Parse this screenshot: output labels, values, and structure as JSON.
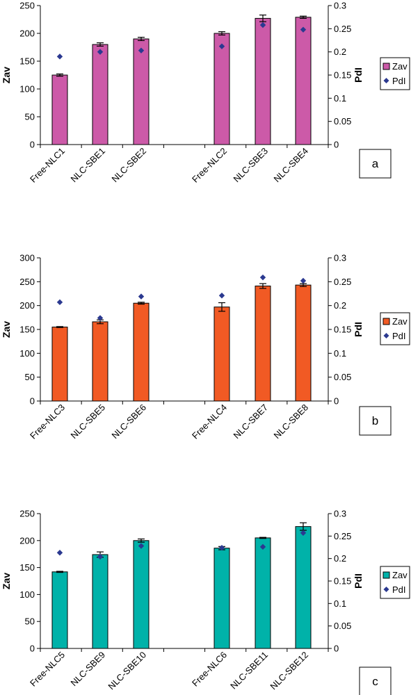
{
  "chart_data": [
    {
      "type": "bar",
      "panel_label": "a",
      "categories": [
        "Free-NLC1",
        "NLC-SBE1",
        "NLC-SBE2",
        "Free-NLC2",
        "NLC-SBE3",
        "NLC-SBE4"
      ],
      "series": [
        {
          "name": "Zav",
          "axis": "left",
          "kind": "bar",
          "color": "#cc5aa8",
          "values": [
            125,
            180,
            190,
            200,
            227,
            229
          ],
          "errors": [
            2,
            3,
            3,
            3,
            6,
            2
          ]
        },
        {
          "name": "PdI",
          "axis": "right",
          "kind": "scatter",
          "color": "#2b3990",
          "values": [
            0.19,
            0.2,
            0.203,
            0.212,
            0.258,
            0.248
          ]
        }
      ],
      "ylabel": "Zav",
      "y2label": "PdI",
      "ylim": [
        0,
        250
      ],
      "yticks": [
        "0",
        "50",
        "100",
        "150",
        "200",
        "250"
      ],
      "y2lim": [
        0,
        0.3
      ],
      "y2ticks": [
        "0",
        "0.05",
        "0.1",
        "0.15",
        "0.2",
        "0.25",
        "0.3"
      ],
      "legend": "right"
    },
    {
      "type": "bar",
      "panel_label": "b",
      "categories": [
        "Free-NLC3",
        "NLC-SBE5",
        "NLC-SBE6",
        "Free-NLC4",
        "NLC-SBE7",
        "NLC-SBE8"
      ],
      "series": [
        {
          "name": "Zav",
          "axis": "left",
          "kind": "bar",
          "color": "#f15a24",
          "values": [
            155,
            166,
            205,
            197,
            241,
            243
          ],
          "errors": [
            1,
            4,
            2,
            9,
            5,
            3
          ]
        },
        {
          "name": "PdI",
          "axis": "right",
          "kind": "scatter",
          "color": "#2b3990",
          "values": [
            0.207,
            0.174,
            0.219,
            0.221,
            0.259,
            0.252
          ]
        }
      ],
      "ylabel": "Zav",
      "y2label": "PdI",
      "ylim": [
        0,
        300
      ],
      "yticks": [
        "0",
        "50",
        "100",
        "150",
        "200",
        "250",
        "300"
      ],
      "y2lim": [
        0,
        0.3
      ],
      "y2ticks": [
        "0",
        "0.05",
        "0.1",
        "0.15",
        "0.2",
        "0.25",
        "0.3"
      ],
      "legend": "right"
    },
    {
      "type": "bar",
      "panel_label": "c",
      "categories": [
        "Free-NLC5",
        "NLC-SBE9",
        "NLC-SBE10",
        "Free-NLC6",
        "NLC-SBE11",
        "NLC-SBE12"
      ],
      "series": [
        {
          "name": "Zav",
          "axis": "left",
          "kind": "bar",
          "color": "#00b2a9",
          "values": [
            142,
            174,
            200,
            186,
            205,
            226
          ],
          "errors": [
            1,
            5,
            3,
            3,
            1,
            7
          ]
        },
        {
          "name": "PdI",
          "axis": "right",
          "kind": "scatter",
          "color": "#2b3990",
          "values": [
            0.213,
            0.204,
            0.228,
            0.224,
            0.226,
            0.257
          ]
        }
      ],
      "ylabel": "Zav",
      "y2label": "PdI",
      "ylim": [
        0,
        250
      ],
      "yticks": [
        "0",
        "50",
        "100",
        "150",
        "200",
        "250"
      ],
      "y2lim": [
        0,
        0.3
      ],
      "y2ticks": [
        "0",
        "0.05",
        "0.1",
        "0.15",
        "0.2",
        "0.25",
        "0.3"
      ],
      "legend": "right"
    }
  ]
}
